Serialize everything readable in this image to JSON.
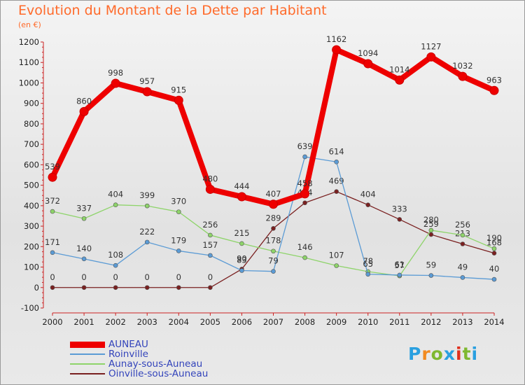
{
  "title": "Evolution du Montant de la Dette par Habitant",
  "unit": "(en €)",
  "logo_text": "Proxiti",
  "logo_colors": [
    "#2aa0e0",
    "#f28a20",
    "#7fb830",
    "#2aa0e0",
    "#e0301e",
    "#7fb830",
    "#2aa0e0"
  ],
  "chart_data": {
    "type": "line",
    "title": "Evolution du Montant de la Dette par Habitant",
    "ylabel": "(en €)",
    "xlabel": "",
    "x": [
      "2000",
      "2001",
      "2002",
      "2003",
      "2004",
      "2005",
      "2006",
      "2007",
      "2008",
      "2009",
      "2010",
      "2011",
      "2012",
      "2013",
      "2014"
    ],
    "ylim": [
      -100,
      1200
    ],
    "yticks": [
      "-100",
      "0",
      "100",
      "200",
      "300",
      "400",
      "500",
      "600",
      "700",
      "800",
      "900",
      "1000",
      "1100",
      "1200"
    ],
    "grid": false,
    "legend_position": "bottom-left",
    "series": [
      {
        "name": "AUNEAU",
        "color": "#ee0000",
        "values": [
          539,
          860,
          998,
          957,
          915,
          480,
          444,
          407,
          458,
          1162,
          1094,
          1014,
          1127,
          1032,
          963
        ]
      },
      {
        "name": "Roinville",
        "color": "#5b9bd5",
        "values": [
          171,
          140,
          108,
          222,
          179,
          157,
          83,
          79,
          639,
          614,
          65,
          61,
          59,
          49,
          40
        ]
      },
      {
        "name": "Aunay-sous-Auneau",
        "color": "#8ed46a",
        "values": [
          372,
          337,
          404,
          399,
          370,
          256,
          215,
          178,
          146,
          107,
          78,
          57,
          280,
          256,
          190
        ]
      },
      {
        "name": "Oinville-sous-Auneau",
        "color": "#7a2020",
        "values": [
          0,
          0,
          0,
          0,
          0,
          0,
          90,
          289,
          414,
          469,
          404,
          333,
          259,
          213,
          168
        ]
      }
    ]
  }
}
